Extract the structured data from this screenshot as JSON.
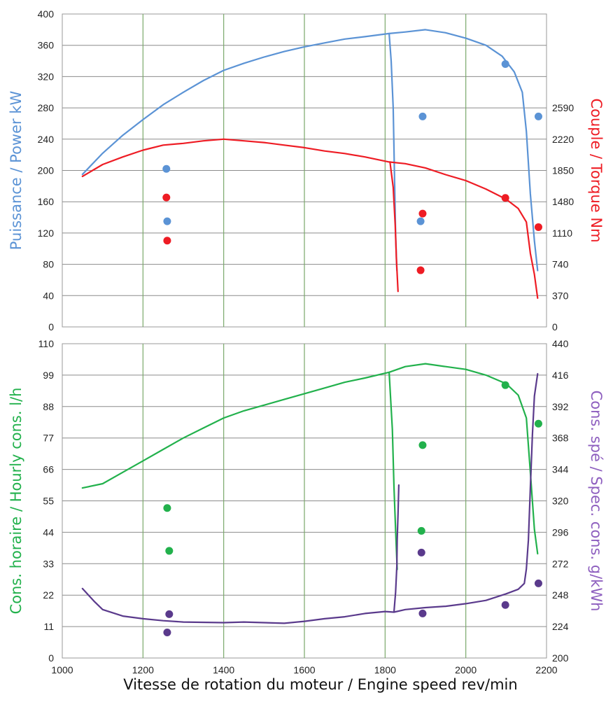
{
  "chart_data": [
    {
      "type": "line",
      "panel": "top",
      "xlim": [
        1000,
        2200
      ],
      "x_ticks": [
        "1000",
        "1200",
        "1400",
        "1600",
        "1800",
        "2000",
        "2200"
      ],
      "y_left": {
        "label": "Puissance / Power kW",
        "color": "#5b93d5",
        "ylim": [
          0,
          400
        ],
        "ticks": [
          "0",
          "40",
          "80",
          "120",
          "160",
          "200",
          "240",
          "280",
          "320",
          "360",
          "400"
        ]
      },
      "y_right": {
        "label": "Couple / Torque Nm",
        "color": "#ee1c24",
        "ylim": [
          0,
          3700
        ],
        "ticks": [
          "0",
          "370",
          "740",
          "1110",
          "1480",
          "1850",
          "2220",
          "2590"
        ],
        "tick_values": [
          0,
          370,
          740,
          1110,
          1480,
          1850,
          2220,
          2590
        ]
      },
      "grid": true,
      "series": [
        {
          "axis": "left",
          "color": "#5b93d5",
          "style": "line",
          "x": [
            1050,
            1100,
            1150,
            1200,
            1250,
            1300,
            1350,
            1400,
            1450,
            1500,
            1550,
            1600,
            1650,
            1700,
            1750,
            1810,
            1850,
            1900,
            1950,
            2000,
            2050,
            2090,
            2120,
            2140,
            2150,
            2160,
            2170,
            2178
          ],
          "y": [
            195,
            222,
            245,
            265,
            284,
            300,
            315,
            328,
            337,
            345,
            352,
            358,
            363,
            368,
            371,
            375,
            377,
            380,
            376,
            369,
            360,
            346,
            326,
            300,
            250,
            170,
            110,
            72
          ]
        },
        {
          "axis": "left",
          "color": "#5b93d5",
          "style": "line",
          "x": [
            1810,
            1815,
            1820,
            1823,
            1826,
            1829
          ],
          "y": [
            375,
            340,
            280,
            200,
            120,
            72
          ]
        },
        {
          "axis": "right",
          "color": "#ee1c24",
          "style": "line",
          "x": [
            1050,
            1100,
            1150,
            1200,
            1250,
            1300,
            1350,
            1400,
            1450,
            1500,
            1550,
            1600,
            1650,
            1700,
            1750,
            1810,
            1850,
            1900,
            1950,
            2000,
            2050,
            2100,
            2130,
            2150,
            2160,
            2170,
            2178
          ],
          "y": [
            1780,
            1920,
            2010,
            2090,
            2150,
            2170,
            2200,
            2220,
            2200,
            2180,
            2150,
            2120,
            2080,
            2050,
            2010,
            1950,
            1930,
            1880,
            1800,
            1730,
            1630,
            1510,
            1400,
            1240,
            870,
            620,
            340
          ]
        },
        {
          "axis": "right",
          "color": "#ee1c24",
          "style": "line",
          "x": [
            1812,
            1820,
            1825,
            1828,
            1832
          ],
          "y": [
            1950,
            1650,
            1200,
            800,
            420
          ]
        },
        {
          "axis": "left",
          "color": "#5b93d5",
          "style": "points",
          "x": [
            1258,
            1260,
            1893,
            1888,
            2098,
            2180
          ],
          "y": [
            202,
            135,
            269,
            135,
            336,
            269
          ]
        },
        {
          "axis": "right",
          "color": "#ee1c24",
          "style": "points",
          "x": [
            1258,
            1260,
            1893,
            1888,
            2098,
            2180
          ],
          "y": [
            1530,
            1020,
            1340,
            670,
            1525,
            1180
          ]
        }
      ]
    },
    {
      "type": "line",
      "panel": "bottom",
      "xlabel": "Vitesse de rotation du moteur / Engine speed rev/min",
      "xlim": [
        1000,
        2200
      ],
      "x_ticks": [
        "1000",
        "1200",
        "1400",
        "1600",
        "1800",
        "2000",
        "2200"
      ],
      "y_left": {
        "label": "Cons. horaire / Hourly cons. l/h",
        "color": "#22b14c",
        "ylim": [
          0,
          110
        ],
        "ticks": [
          "0",
          "11",
          "22",
          "33",
          "44",
          "55",
          "66",
          "77",
          "88",
          "99",
          "110"
        ]
      },
      "y_right": {
        "label": "Cons. spé / Spec. cons. g/kWh",
        "color": "#8e5fbf",
        "ylim": [
          200,
          440
        ],
        "ticks": [
          "200",
          "224",
          "248",
          "272",
          "296",
          "320",
          "344",
          "368",
          "392",
          "416",
          "440"
        ]
      },
      "grid": true,
      "series": [
        {
          "axis": "left",
          "color": "#22b14c",
          "style": "line",
          "x": [
            1050,
            1100,
            1150,
            1200,
            1250,
            1300,
            1350,
            1400,
            1450,
            1500,
            1550,
            1600,
            1650,
            1700,
            1750,
            1810,
            1850,
            1900,
            1950,
            2000,
            2050,
            2100,
            2130,
            2150,
            2160,
            2170,
            2178
          ],
          "y": [
            59.5,
            61,
            65,
            69,
            73,
            77,
            80.5,
            84,
            86.5,
            88.5,
            90.5,
            92.5,
            94.5,
            96.5,
            98,
            100,
            102,
            103,
            102,
            101,
            99,
            96,
            92,
            84,
            65,
            45,
            36.5
          ]
        },
        {
          "axis": "left",
          "color": "#22b14c",
          "style": "line",
          "x": [
            1810,
            1818,
            1822,
            1826,
            1830
          ],
          "y": [
            100,
            80,
            60,
            45,
            31
          ]
        },
        {
          "axis": "right",
          "color": "#5a3a8c",
          "style": "line",
          "x": [
            1050,
            1080,
            1100,
            1150,
            1200,
            1250,
            1300,
            1400,
            1450,
            1500,
            1550,
            1600,
            1650,
            1700,
            1750,
            1800,
            1822,
            1850,
            1900,
            1950,
            2000,
            2050,
            2100,
            2130,
            2145,
            2150,
            2155,
            2160,
            2165,
            2170,
            2178
          ],
          "y": [
            253,
            243,
            237,
            232,
            230,
            228.5,
            227.5,
            227,
            227.5,
            227,
            226.5,
            228,
            230,
            231.5,
            234,
            235.5,
            235,
            237,
            238.5,
            239.5,
            241.5,
            244,
            249,
            252.5,
            257,
            268,
            290,
            330,
            370,
            400,
            417
          ]
        },
        {
          "axis": "right",
          "color": "#5a3a8c",
          "style": "line",
          "x": [
            1822,
            1826,
            1829,
            1830,
            1832,
            1834
          ],
          "y": [
            235,
            250,
            270,
            290,
            310,
            332
          ]
        },
        {
          "axis": "left",
          "color": "#22b14c",
          "style": "points",
          "x": [
            1260,
            1265,
            1893,
            1890,
            2098,
            2180
          ],
          "y": [
            52.5,
            37.5,
            74.5,
            44.5,
            95.5,
            82
          ]
        },
        {
          "axis": "right",
          "color": "#5a3a8c",
          "style": "points",
          "x": [
            1260,
            1265,
            1890,
            1893,
            2098,
            2180
          ],
          "y": [
            219.5,
            233.5,
            280.5,
            234,
            240.5,
            257
          ]
        }
      ]
    }
  ]
}
